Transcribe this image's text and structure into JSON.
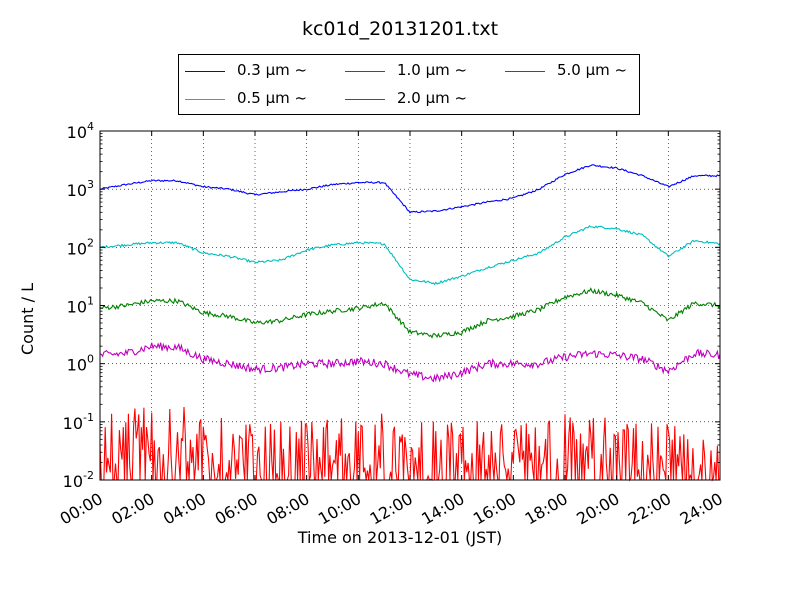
{
  "chart_data": {
    "type": "line",
    "title": "kc01d_20131201.txt",
    "xlabel": "Time on 2013-12-01 (JST)",
    "ylabel": "Count / L",
    "yscale": "log",
    "ylim": [
      0.01,
      10000
    ],
    "xlim": [
      "00:00",
      "24:00"
    ],
    "x_tick_labels": [
      "00:00",
      "02:00",
      "04:00",
      "06:00",
      "08:00",
      "10:00",
      "12:00",
      "14:00",
      "16:00",
      "18:00",
      "20:00",
      "22:00",
      "24:00"
    ],
    "y_tick_labels": [
      {
        "base": "10",
        "exp": "-2"
      },
      {
        "base": "10",
        "exp": "-1"
      },
      {
        "base": "10",
        "exp": "0"
      },
      {
        "base": "10",
        "exp": "1"
      },
      {
        "base": "10",
        "exp": "2"
      },
      {
        "base": "10",
        "exp": "3"
      },
      {
        "base": "10",
        "exp": "4"
      }
    ],
    "grid": true,
    "legend_position": "top-center",
    "hours": [
      0,
      1,
      2,
      3,
      4,
      5,
      6,
      7,
      8,
      9,
      10,
      11,
      12,
      13,
      14,
      15,
      16,
      17,
      18,
      19,
      20,
      21,
      22,
      23,
      24
    ],
    "series": [
      {
        "name": "0.3 μm ~",
        "color": "#0000ff",
        "values": [
          1000,
          1200,
          1400,
          1400,
          1100,
          1000,
          800,
          900,
          1000,
          1200,
          1300,
          1300,
          400,
          420,
          500,
          600,
          700,
          1000,
          1800,
          2600,
          2300,
          1700,
          1100,
          1700,
          1700
        ]
      },
      {
        "name": "0.5 μm ~",
        "color": "#00bfbf",
        "values": [
          100,
          110,
          120,
          120,
          80,
          70,
          55,
          60,
          90,
          110,
          120,
          115,
          28,
          24,
          32,
          45,
          60,
          80,
          150,
          230,
          210,
          160,
          70,
          130,
          115
        ]
      },
      {
        "name": "1.0 μm ~",
        "color": "#008000",
        "values": [
          9,
          10,
          12,
          12,
          7.5,
          6.5,
          5,
          5.5,
          7,
          8,
          9,
          11,
          3.5,
          3,
          3.5,
          5.5,
          6.5,
          8.5,
          14,
          18,
          15,
          11,
          5.5,
          11,
          10
        ]
      },
      {
        "name": "2.0 μm ~",
        "color": "#bf00bf",
        "values": [
          1.4,
          1.5,
          2.0,
          1.9,
          1.2,
          1.0,
          0.8,
          0.85,
          1.0,
          1.0,
          1.1,
          1.0,
          0.65,
          0.55,
          0.7,
          1.0,
          1.0,
          1.0,
          1.3,
          1.5,
          1.4,
          1.2,
          0.75,
          1.5,
          1.4
        ]
      },
      {
        "name": "5.0 μm ~",
        "color": "#ff0000",
        "values": [
          0.02,
          0.04,
          0.05,
          0.05,
          0.03,
          0.02,
          0.02,
          0.02,
          0.02,
          0.03,
          0.03,
          0.03,
          0.02,
          0.02,
          0.02,
          0.02,
          0.02,
          0.03,
          0.03,
          0.03,
          0.02,
          0.02,
          0.02,
          0.02,
          0.02
        ]
      }
    ]
  },
  "legend": {
    "items": [
      {
        "text": "0.3 μm  ~",
        "color": "#0000ff"
      },
      {
        "text": "1.0 μm  ~",
        "color": "#008000"
      },
      {
        "text": "5.0 μm  ~",
        "color": "#ff0000"
      },
      {
        "text": "0.5 μm  ~",
        "color": "#00bfbf"
      },
      {
        "text": "2.0 μm  ~",
        "color": "#bf00bf"
      }
    ]
  }
}
